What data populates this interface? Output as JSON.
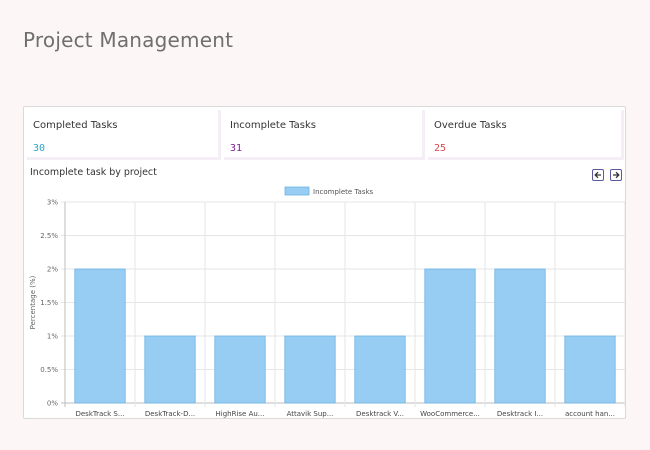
{
  "page": {
    "title": "Project Management"
  },
  "stats": [
    {
      "label": "Completed Tasks",
      "value": "30",
      "color": "#29a8c5"
    },
    {
      "label": "Incomplete Tasks",
      "value": "31",
      "color": "#7b1f8e"
    },
    {
      "label": "Overdue Tasks",
      "value": "25",
      "color": "#e0484e"
    }
  ],
  "chart_card": {
    "title": "Incomplete task by project",
    "prev_icon": "arrow-left-icon",
    "next_icon": "arrow-right-icon"
  },
  "chart_data": {
    "type": "bar",
    "categories": [
      "DeskTrack S...",
      "DeskTrack-D...",
      "HighRise Au...",
      "Attavik Sup...",
      "Desktrack V...",
      "WooCommerce...",
      "Desktrack I...",
      "account han..."
    ],
    "series": [
      {
        "name": "Incomplete Tasks",
        "values": [
          2,
          1,
          1,
          1,
          1,
          2,
          2,
          1
        ],
        "color": "#97cdf2",
        "border": "#6cb4e4"
      }
    ],
    "ylabel": "Percentage (%)",
    "xlabel": "",
    "ylim": [
      0,
      3
    ],
    "yticks": [
      "0%",
      "0.5%",
      "1%",
      "1.5%",
      "2%",
      "2.5%",
      "3%"
    ],
    "legend": "top-center",
    "grid": true
  }
}
